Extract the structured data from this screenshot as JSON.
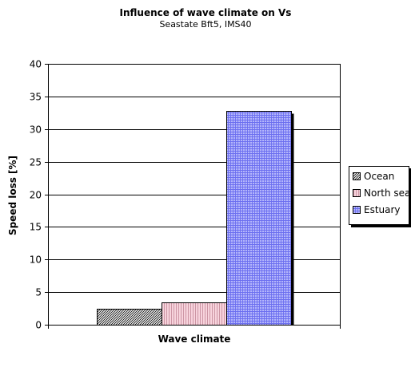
{
  "chart_data": {
    "type": "bar",
    "title": "Influence of wave climate on Vs",
    "subtitle": "Seastate Bft5, IMS40",
    "xlabel": "Wave climate",
    "ylabel": "Speed loss  [%]",
    "ylim": [
      0,
      40
    ],
    "yticks": [
      "0",
      "5",
      "10",
      "15",
      "20",
      "25",
      "30",
      "35",
      "40"
    ],
    "grid": true,
    "legend_position": "right",
    "categories": [
      ""
    ],
    "series": [
      {
        "name": "Ocean",
        "values": [
          2.5
        ],
        "color": "#ffffff",
        "pattern": "diagonal-hatch"
      },
      {
        "name": "North sea",
        "values": [
          3.4
        ],
        "color": "#f4c6d2",
        "pattern": "vertical-lines"
      },
      {
        "name": "Estuary",
        "values": [
          32.8
        ],
        "color": "#9ea0f5",
        "pattern": "grid"
      }
    ]
  }
}
